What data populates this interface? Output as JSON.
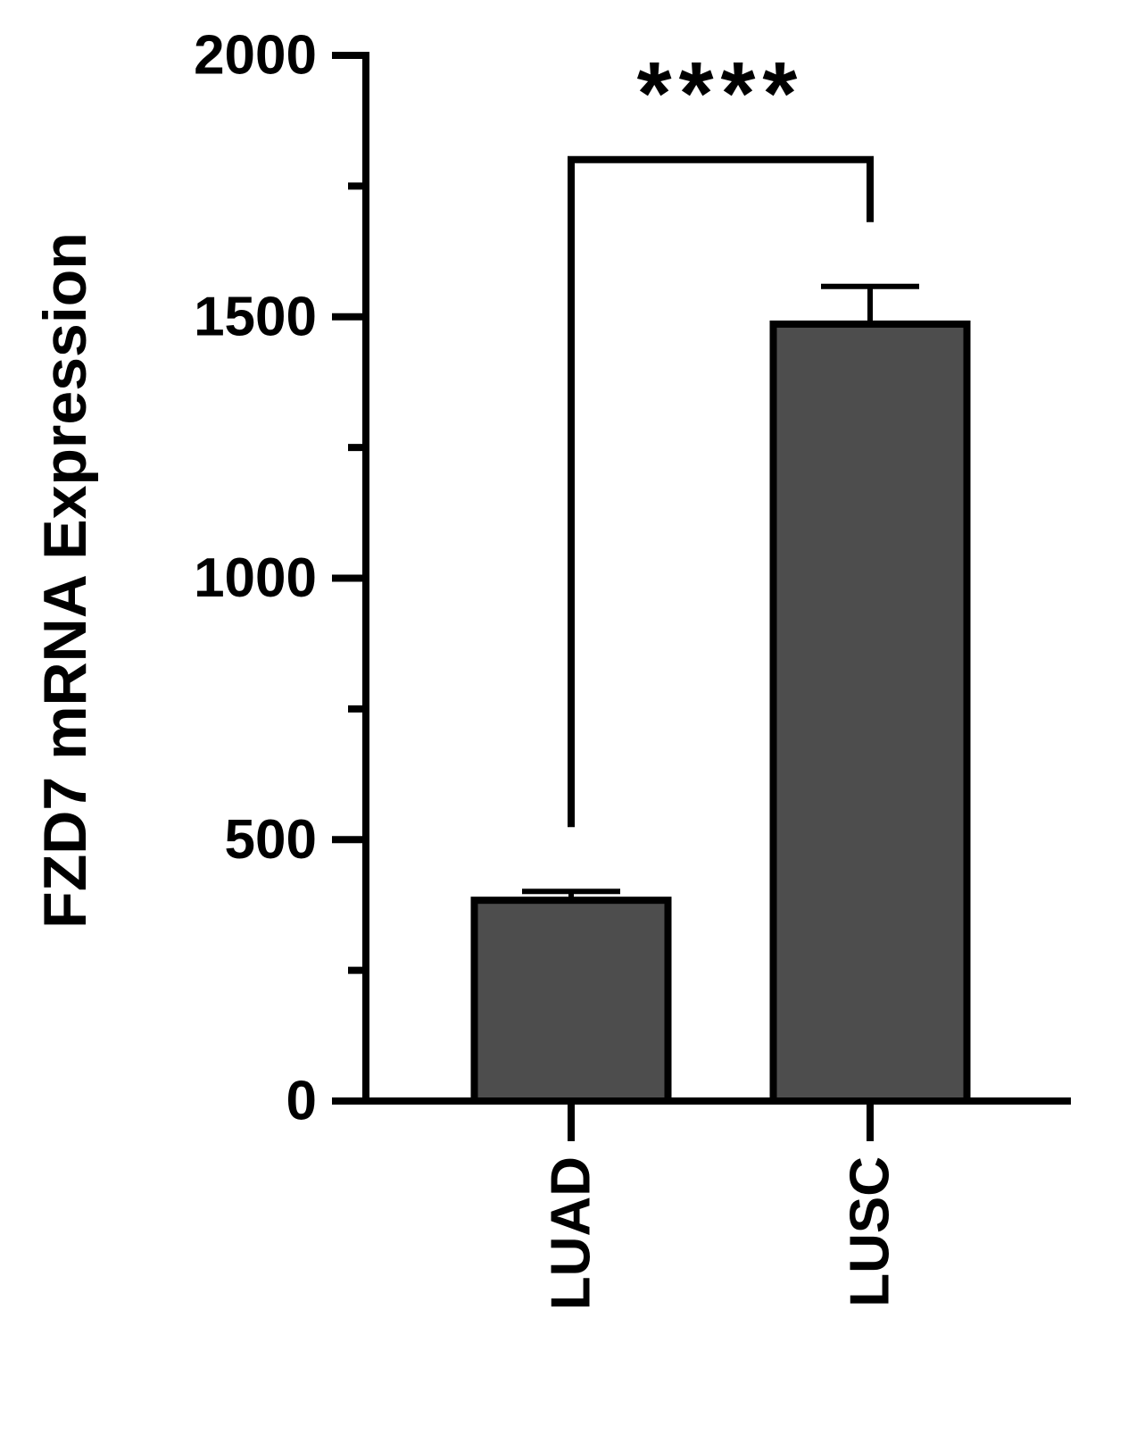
{
  "chart_data": {
    "type": "bar",
    "ylabel": "FZD7 mRNA Expression",
    "categories": [
      "LUAD",
      "LUSC"
    ],
    "values": [
      384,
      1486
    ],
    "errors": [
      17,
      72
    ],
    "color": "#4d4d4d",
    "ylim": [
      0,
      2000
    ],
    "yticks": [
      0,
      500,
      1000,
      1500,
      2000
    ],
    "minor_yticks": [
      250,
      750,
      1250,
      1750
    ],
    "significance": {
      "text": "****",
      "between": [
        0,
        1
      ]
    }
  }
}
